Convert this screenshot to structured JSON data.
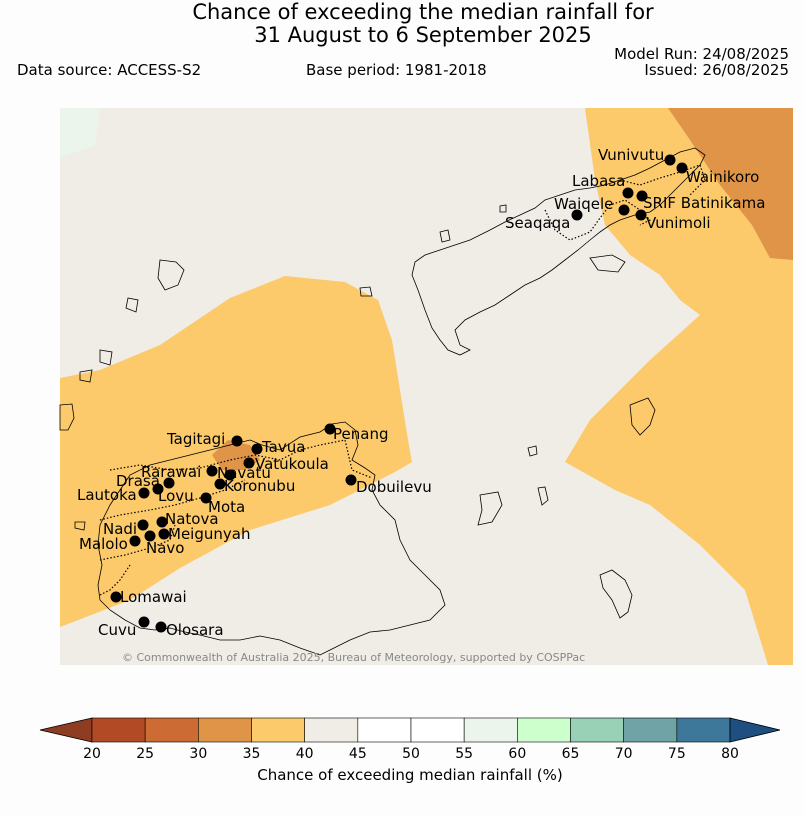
{
  "header": {
    "title_line1": "Chance of exceeding the median rainfall for",
    "title_line2": "31 August to 6 September 2025",
    "data_source": "Data source: ACCESS-S2",
    "base_period": "Base period: 1981-2018",
    "model_run": "Model Run: 24/08/2025",
    "issued": "Issued: 26/08/2025"
  },
  "map": {
    "copyright": "© Commonwealth of Australia 2025, Bureau of Meteorology, supported by COSPPac",
    "places": [
      {
        "name": "Vunivutu",
        "label": "Vunivutu"
      },
      {
        "name": "Wainikoro",
        "label": "Wainikoro"
      },
      {
        "name": "Labasa",
        "label": "Labasa"
      },
      {
        "name": "Waiqele",
        "label": "Waiqele"
      },
      {
        "name": "SRIF Batinikama",
        "label": "SRIF Batinikama"
      },
      {
        "name": "Seaqaqa",
        "label": "Seaqaqa"
      },
      {
        "name": "Vunimoli",
        "label": "Vunimoli"
      },
      {
        "name": "Tagitagi",
        "label": "Tagitagi"
      },
      {
        "name": "Penang",
        "label": "Penang"
      },
      {
        "name": "Tavua",
        "label": "Tavua"
      },
      {
        "name": "Vatukoula",
        "label": "Vatukoula"
      },
      {
        "name": "Rarawai",
        "label": "Rarawai"
      },
      {
        "name": "Navatu",
        "label": "Navatu"
      },
      {
        "name": "Drasa",
        "label": "Drasa"
      },
      {
        "name": "Koronubu",
        "label": "Koronubu"
      },
      {
        "name": "Dobuilevu",
        "label": "Dobuilevu"
      },
      {
        "name": "Lautoka",
        "label": "Lautoka"
      },
      {
        "name": "Lovu",
        "label": "Lovu"
      },
      {
        "name": "Mota",
        "label": "Mota"
      },
      {
        "name": "Natova",
        "label": "Natova"
      },
      {
        "name": "Nadi",
        "label": "Nadi"
      },
      {
        "name": "Meigunyah",
        "label": "Meigunyah"
      },
      {
        "name": "Malolo",
        "label": "Malolo"
      },
      {
        "name": "Navo",
        "label": "Navo"
      },
      {
        "name": "Lomawai",
        "label": "Lomawai"
      },
      {
        "name": "Cuvu",
        "label": "Cuvu"
      },
      {
        "name": "Olosara",
        "label": "Olosara"
      }
    ]
  },
  "colorbar": {
    "label": "Chance of exceeding median rainfall (%)",
    "ticks": [
      "20",
      "25",
      "30",
      "35",
      "40",
      "45",
      "50",
      "55",
      "60",
      "65",
      "70",
      "75",
      "80"
    ],
    "colors": [
      "#b34a26",
      "#cc6b34",
      "#e09448",
      "#fcca6b",
      "#f0ece6",
      "#ffffff",
      "#ffffff",
      "#ebf5eb",
      "#ccffcc",
      "#99d1b6",
      "#70a3a5",
      "#3d7799"
    ],
    "under_color": "#8e3d22",
    "over_color": "#1f4f80"
  },
  "legend_colors": {
    "below_35": "#fcca6b",
    "neutral": "#f0ece6",
    "below_30": "#e09448",
    "above_55": "#ebf5eb"
  }
}
